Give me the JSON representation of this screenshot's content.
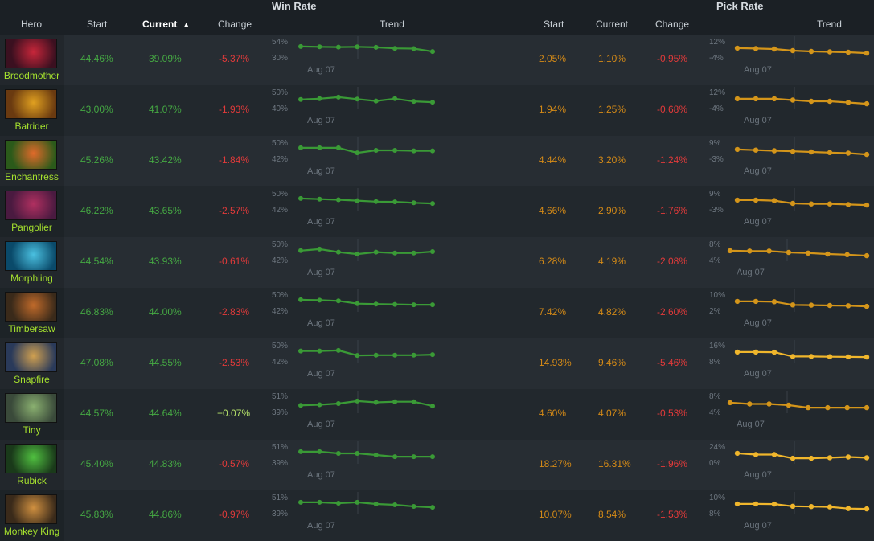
{
  "groups": {
    "win_rate": "Win Rate",
    "pick_rate": "Pick Rate"
  },
  "columns": {
    "hero": "Hero",
    "start": "Start",
    "current": "Current",
    "change": "Change",
    "trend": "Trend",
    "pick_start": "Start",
    "pick_current": "Current",
    "pick_change": "Change",
    "pick_trend": "Trend"
  },
  "sort_indicator": "▲",
  "date_label": "Aug 07",
  "colors": {
    "win_line": "#3a9a36",
    "pick_line": "#d4951a",
    "pick_line_bright": "#f0b62c"
  },
  "heroes": [
    {
      "name": "Broodmother",
      "portrait_icon": "broodmother-portrait-icon",
      "win": {
        "start": "44.46%",
        "current": "39.09%",
        "change": "-5.37%",
        "ticks": [
          "54%",
          "30%"
        ],
        "trend": [
          42.5,
          42.4,
          42.3,
          42.4,
          42.2,
          41.8,
          41.7,
          40.6
        ]
      },
      "pick": {
        "start": "2.05%",
        "current": "1.10%",
        "change": "-0.95%",
        "ticks": [
          "12%",
          "-4%"
        ],
        "trend": [
          2.0,
          1.95,
          1.9,
          1.7,
          1.6,
          1.55,
          1.5,
          1.4
        ]
      }
    },
    {
      "name": "Batrider",
      "portrait_icon": "batrider-portrait-icon",
      "win": {
        "start": "43.00%",
        "current": "41.07%",
        "change": "-1.93%",
        "ticks": [
          "50%",
          "40%"
        ],
        "trend": [
          43.0,
          43.2,
          43.6,
          43.1,
          42.6,
          43.2,
          42.5,
          42.3
        ]
      },
      "pick": {
        "start": "1.94%",
        "current": "1.25%",
        "change": "-0.68%",
        "ticks": [
          "12%",
          "-4%"
        ],
        "trend": [
          1.9,
          1.9,
          1.9,
          1.85,
          1.8,
          1.8,
          1.75,
          1.7
        ]
      }
    },
    {
      "name": "Enchantress",
      "portrait_icon": "enchantress-portrait-icon",
      "win": {
        "start": "45.26%",
        "current": "43.42%",
        "change": "-1.84%",
        "ticks": [
          "50%",
          "42%"
        ],
        "trend": [
          46.0,
          46.0,
          46.0,
          45.0,
          45.5,
          45.5,
          45.4,
          45.4
        ]
      },
      "pick": {
        "start": "4.44%",
        "current": "3.20%",
        "change": "-1.24%",
        "ticks": [
          "9%",
          "-3%"
        ],
        "trend": [
          4.4,
          4.3,
          4.2,
          4.1,
          4.0,
          3.9,
          3.8,
          3.6
        ]
      }
    },
    {
      "name": "Pangolier",
      "portrait_icon": "pangolier-portrait-icon",
      "win": {
        "start": "46.22%",
        "current": "43.65%",
        "change": "-2.57%",
        "ticks": [
          "50%",
          "42%"
        ],
        "trend": [
          46.4,
          46.2,
          46.0,
          45.7,
          45.4,
          45.3,
          45.0,
          44.8
        ]
      },
      "pick": {
        "start": "4.66%",
        "current": "2.90%",
        "change": "-1.76%",
        "ticks": [
          "9%",
          "-3%"
        ],
        "trend": [
          4.6,
          4.6,
          4.5,
          4.0,
          3.9,
          3.9,
          3.8,
          3.7
        ]
      }
    },
    {
      "name": "Morphling",
      "portrait_icon": "morphling-portrait-icon",
      "win": {
        "start": "44.54%",
        "current": "43.93%",
        "change": "-0.61%",
        "ticks": [
          "50%",
          "42%"
        ],
        "trend": [
          45.5,
          45.8,
          45.2,
          44.8,
          45.2,
          45.0,
          45.0,
          45.3
        ]
      },
      "pick": {
        "start": "6.28%",
        "current": "4.19%",
        "change": "-2.08%",
        "ticks": [
          "8%",
          "4%"
        ],
        "trend": [
          6.3,
          6.2,
          6.2,
          5.8,
          5.6,
          5.3,
          5.1,
          4.8
        ]
      }
    },
    {
      "name": "Timbersaw",
      "portrait_icon": "timbersaw-portrait-icon",
      "win": {
        "start": "46.83%",
        "current": "44.00%",
        "change": "-2.83%",
        "ticks": [
          "50%",
          "42%"
        ],
        "trend": [
          46.7,
          46.6,
          46.4,
          45.6,
          45.5,
          45.4,
          45.3,
          45.3
        ]
      },
      "pick": {
        "start": "7.42%",
        "current": "4.82%",
        "change": "-2.60%",
        "ticks": [
          "10%",
          "2%"
        ],
        "trend": [
          7.3,
          7.3,
          7.2,
          6.1,
          6.0,
          5.9,
          5.8,
          5.6
        ]
      }
    },
    {
      "name": "Snapfire",
      "portrait_icon": "snapfire-portrait-icon",
      "win": {
        "start": "47.08%",
        "current": "44.55%",
        "change": "-2.53%",
        "ticks": [
          "50%",
          "42%"
        ],
        "trend": [
          46.7,
          46.7,
          46.9,
          44.9,
          45.0,
          45.0,
          45.0,
          45.2
        ]
      },
      "pick": {
        "start": "14.93%",
        "current": "9.46%",
        "change": "-5.46%",
        "ticks": [
          "16%",
          "8%"
        ],
        "trend": [
          15.3,
          15.3,
          15.2,
          10.9,
          10.9,
          10.7,
          10.5,
          10.4
        ]
      }
    },
    {
      "name": "Tiny",
      "portrait_icon": "tiny-portrait-icon",
      "win": {
        "start": "44.57%",
        "current": "44.64%",
        "change": "+0.07%",
        "ticks": [
          "51%",
          "39%"
        ],
        "trend": [
          44.5,
          44.6,
          44.8,
          45.2,
          45.0,
          45.1,
          45.1,
          44.4
        ]
      },
      "pick": {
        "start": "4.60%",
        "current": "4.07%",
        "change": "-0.53%",
        "ticks": [
          "8%",
          "4%"
        ],
        "trend": [
          4.6,
          4.5,
          4.5,
          4.4,
          4.2,
          4.2,
          4.2,
          4.2
        ]
      }
    },
    {
      "name": "Rubick",
      "portrait_icon": "rubick-portrait-icon",
      "win": {
        "start": "45.40%",
        "current": "44.83%",
        "change": "-0.57%",
        "ticks": [
          "51%",
          "39%"
        ],
        "trend": [
          45.0,
          45.0,
          44.9,
          44.9,
          44.8,
          44.7,
          44.7,
          44.7
        ]
      },
      "pick": {
        "start": "18.27%",
        "current": "16.31%",
        "change": "-1.96%",
        "ticks": [
          "24%",
          "0%"
        ],
        "trend": [
          18.0,
          17.5,
          17.5,
          16.0,
          16.0,
          16.2,
          16.5,
          16.2
        ]
      }
    },
    {
      "name": "Monkey King",
      "portrait_icon": "monkey-king-portrait-icon",
      "win": {
        "start": "45.83%",
        "current": "44.86%",
        "change": "-0.97%",
        "ticks": [
          "51%",
          "39%"
        ],
        "trend": [
          45.8,
          45.8,
          45.7,
          45.8,
          45.6,
          45.5,
          45.3,
          45.2
        ]
      },
      "pick": {
        "start": "10.07%",
        "current": "8.54%",
        "change": "-1.53%",
        "ticks": [
          "10%",
          "8%"
        ],
        "trend": [
          10.1,
          10.1,
          10.05,
          9.4,
          9.3,
          9.2,
          8.7,
          8.6
        ]
      }
    }
  ]
}
